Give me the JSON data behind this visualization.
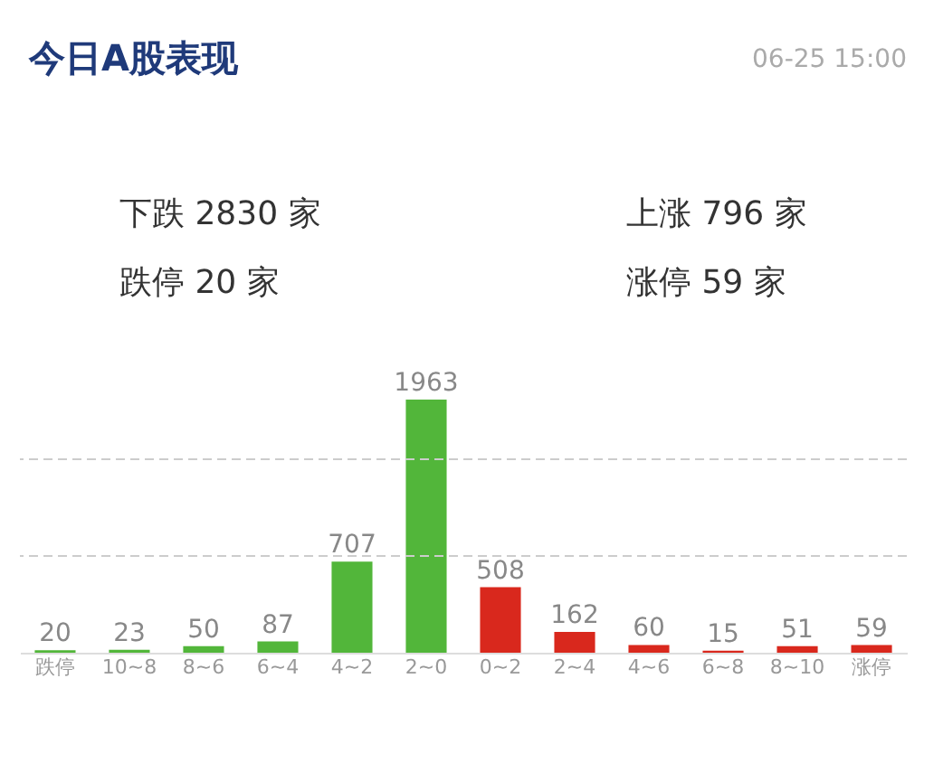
{
  "chart_data": {
    "type": "bar",
    "title": "今日A股表现",
    "categories": [
      "跌停",
      "10~8",
      "8~6",
      "6~4",
      "4~2",
      "2~0",
      "0~2",
      "2~4",
      "4~6",
      "6~8",
      "8~10",
      "涨停"
    ],
    "values": [
      20,
      23,
      50,
      87,
      707,
      1963,
      508,
      162,
      60,
      15,
      51,
      59
    ],
    "colors": [
      "#52b63a",
      "#52b63a",
      "#52b63a",
      "#52b63a",
      "#52b63a",
      "#52b63a",
      "#d9281d",
      "#d9281d",
      "#d9281d",
      "#d9281d",
      "#d9281d",
      "#d9281d"
    ],
    "data_labels": true,
    "ref_lines": [
      {
        "axis": "y",
        "value": 750,
        "color": "#cccccc",
        "line_style": "dashed"
      },
      {
        "axis": "y",
        "value": 1500,
        "color": "#cccccc",
        "line_style": "dashed"
      }
    ],
    "tick_labels": "x",
    "annotations": [
      "06-25 15:00",
      "下跌 2830 家",
      "跌停 20 家",
      "上涨 796 家",
      "涨停 59 家"
    ]
  }
}
